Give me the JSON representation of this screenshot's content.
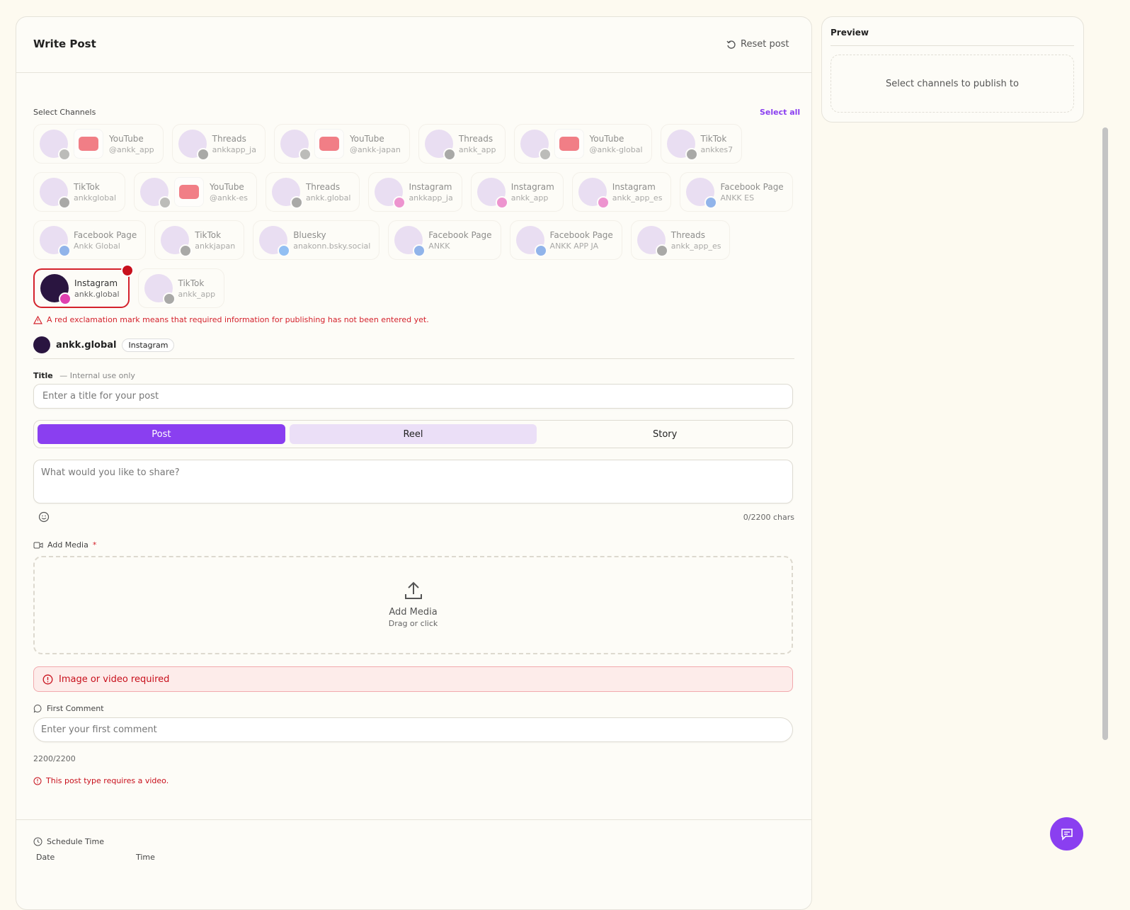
{
  "header": {
    "title": "Write Post",
    "reset": "Reset post"
  },
  "preview": {
    "title": "Preview",
    "empty": "Select channels to publish to"
  },
  "channels": {
    "label": "Select Channels",
    "select_all": "Select all",
    "items": [
      {
        "platform": "YouTube",
        "handle": "@ankk_app"
      },
      {
        "platform": "Threads",
        "handle": "ankkapp_ja"
      },
      {
        "platform": "YouTube",
        "handle": "@ankk-japan"
      },
      {
        "platform": "Threads",
        "handle": "ankk_app"
      },
      {
        "platform": "YouTube",
        "handle": "@ankk-global"
      },
      {
        "platform": "TikTok",
        "handle": "ankkes7"
      },
      {
        "platform": "TikTok",
        "handle": "ankkglobal"
      },
      {
        "platform": "YouTube",
        "handle": "@ankk-es"
      },
      {
        "platform": "Threads",
        "handle": "ankk.global"
      },
      {
        "platform": "Instagram",
        "handle": "ankkapp_ja"
      },
      {
        "platform": "Instagram",
        "handle": "ankk_app"
      },
      {
        "platform": "Instagram",
        "handle": "ankk_app_es"
      },
      {
        "platform": "Facebook Page",
        "handle": "ANKK ES"
      },
      {
        "platform": "Facebook Page",
        "handle": "Ankk Global"
      },
      {
        "platform": "TikTok",
        "handle": "ankkjapan"
      },
      {
        "platform": "Bluesky",
        "handle": "anakonn.bsky.social"
      },
      {
        "platform": "Facebook Page",
        "handle": "ANKK"
      },
      {
        "platform": "Facebook Page",
        "handle": "ANKK APP JA"
      },
      {
        "platform": "Threads",
        "handle": "ankk_app_es"
      },
      {
        "platform": "Instagram",
        "handle": "ankk.global",
        "selected": true
      },
      {
        "platform": "TikTok",
        "handle": "ankk_app"
      }
    ],
    "warning": "A red exclamation mark means that required information for publishing has not been entered yet."
  },
  "selected": {
    "name": "ankk.global",
    "platform": "Instagram"
  },
  "title_field": {
    "label": "Title",
    "hint": "— Internal use only",
    "placeholder": "Enter a title for your post"
  },
  "tabs": [
    "Post",
    "Reel",
    "Story"
  ],
  "content": {
    "placeholder": "What would you like to share?",
    "counter": "0/2200 chars"
  },
  "media": {
    "label": "Add Media",
    "required": "*",
    "drop_title": "Add Media",
    "drop_sub": "Drag or click",
    "error": "Image or video required"
  },
  "first_comment": {
    "label": "First Comment",
    "placeholder": "Enter your first comment",
    "counter": "2200/2200",
    "error": "This post type requires a video."
  },
  "schedule": {
    "label": "Schedule Time",
    "date": "Date",
    "time": "Time"
  }
}
